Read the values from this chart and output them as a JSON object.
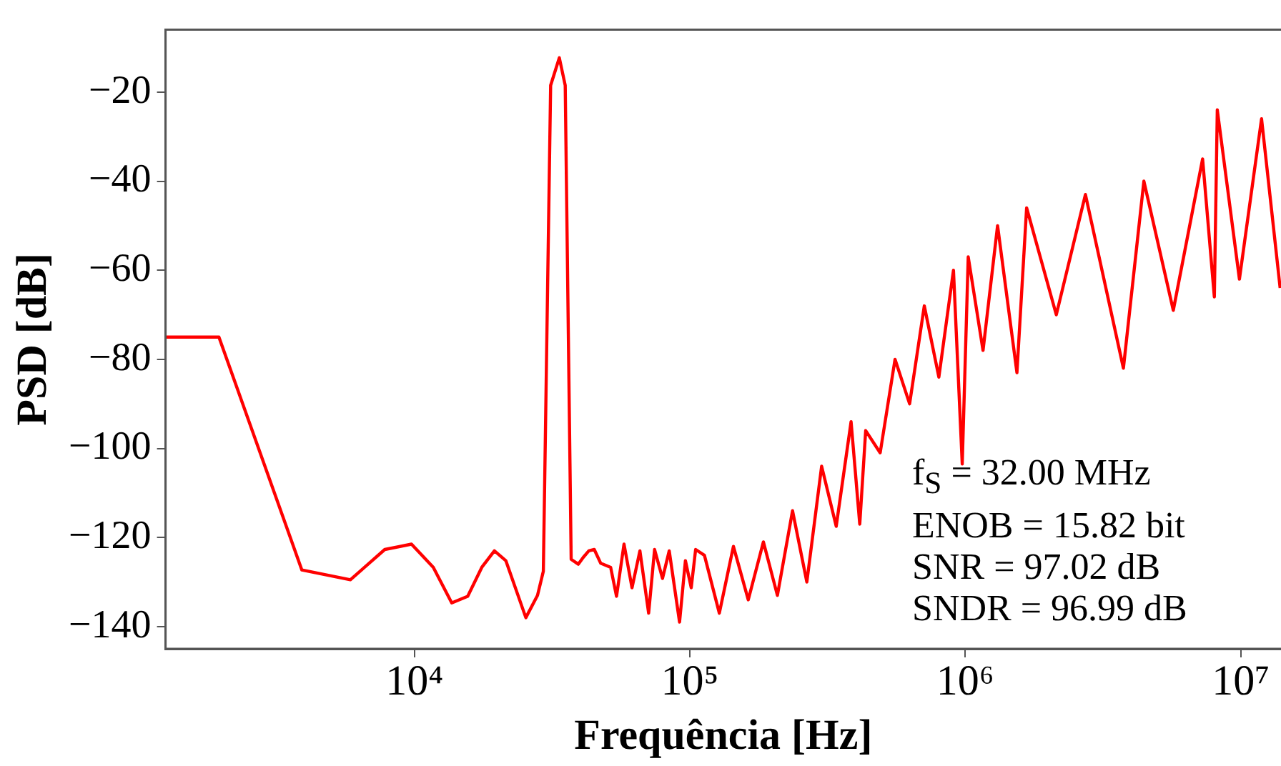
{
  "chart_data": {
    "type": "line",
    "xlabel": "Frequência [Hz]",
    "ylabel": "PSD [dB]",
    "log": "x",
    "grid": false,
    "legend": false,
    "marker": "none",
    "line_style": "solid",
    "xlim": [
      1250,
      14000000
    ],
    "xticks": [
      {
        "value": 10000,
        "label": "10⁴"
      },
      {
        "value": 100000,
        "label": "10⁵"
      },
      {
        "value": 1000000,
        "label": "10⁶"
      },
      {
        "value": 10000000,
        "label": "10⁷"
      }
    ],
    "ylim": [
      -145,
      -6
    ],
    "yticks": [
      {
        "value": -20,
        "label": "−20"
      },
      {
        "value": -40,
        "label": "−40"
      },
      {
        "value": -60,
        "label": "−60"
      },
      {
        "value": -80,
        "label": "−80"
      },
      {
        "value": -100,
        "label": "−100"
      },
      {
        "value": -120,
        "label": "−120"
      },
      {
        "value": -140,
        "label": "−140"
      }
    ],
    "annotations": [
      "f$_{S}$ = 32.00 MHz",
      "ENOB = 15.82 bit",
      "SNR = 97.02 dB",
      "SNDR = 96.99 dB"
    ],
    "series": [
      {
        "color": "#ff0000",
        "x": [
          1250,
          1953,
          3906,
          5860,
          7812,
          9766,
          11719,
          13672,
          15625,
          17578,
          19531,
          21484,
          25400,
          28000,
          29400,
          31250,
          33600,
          35300,
          37100,
          39400,
          41000,
          43000,
          45000,
          47500,
          51600,
          54200,
          57700,
          61700,
          65900,
          70900,
          74500,
          79600,
          84200,
          91800,
          96400,
          101200,
          105000,
          113000,
          128000,
          144000,
          163000,
          185000,
          208000,
          236000,
          266000,
          301000,
          340000,
          385000,
          414000,
          435000,
          491000,
          556000,
          628000,
          710000,
          802000,
          906000,
          975000,
          1025000,
          1160000,
          1310000,
          1540000,
          1670000,
          2140000,
          2730000,
          3750000,
          4450000,
          5690000,
          7270000,
          8020000,
          8220000,
          9890000,
          11900000,
          13900000
        ],
        "values": [
          -75,
          -75,
          -127.3,
          -129.5,
          -122.7,
          -121.5,
          -126.7,
          -134.7,
          -133.2,
          -126.7,
          -123,
          -125.2,
          -138,
          -133,
          -127.6,
          -18.5,
          -12.3,
          -18.5,
          -124.9,
          -126,
          -124.5,
          -123,
          -122.7,
          -125.8,
          -126.7,
          -133.2,
          -121.5,
          -131.3,
          -123,
          -137,
          -122.7,
          -129.2,
          -123,
          -139,
          -125.2,
          -131.3,
          -122.7,
          -124,
          -137,
          -122,
          -134,
          -121,
          -133,
          -114,
          -130,
          -104,
          -117.5,
          -94,
          -117,
          -96,
          -101,
          -80,
          -90,
          -68,
          -84,
          -60,
          -103.5,
          -57,
          -78,
          -50,
          -83,
          -46,
          -70,
          -43,
          -82,
          -40,
          -69,
          -35,
          -66,
          -24,
          -62,
          -26,
          -64
        ]
      }
    ]
  }
}
